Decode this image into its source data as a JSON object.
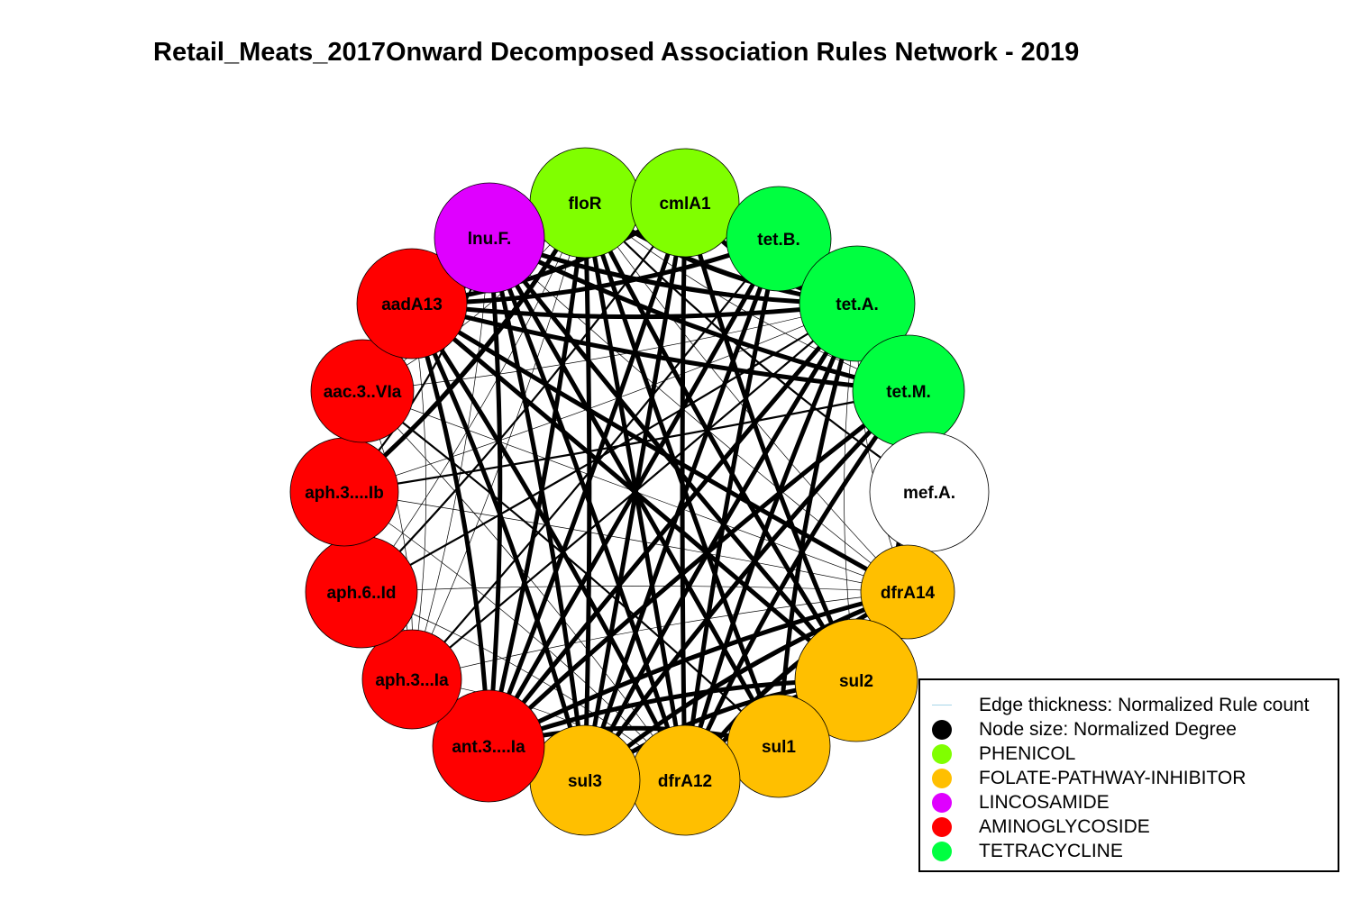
{
  "title": "Retail_Meats_2017Onward Decomposed Association Rules Network - 2019",
  "colors": {
    "PHENICOL": "#80ff00",
    "FOLATE-PATHWAY-INHIBITOR": "#ffbf00",
    "LINCOSAMIDE": "#df00ff",
    "AMINOGLYCOSIDE": "#ff0000",
    "TETRACYCLINE": "#00ff40",
    "MACROLIDE": "#ffffff",
    "edge": "#000000",
    "legend_edge": "#a6d6e8"
  },
  "nodes": [
    {
      "id": "floR",
      "label": "floR",
      "class": "PHENICOL"
    },
    {
      "id": "cmlA1",
      "label": "cmlA1",
      "class": "PHENICOL"
    },
    {
      "id": "tet.B.",
      "label": "tet.B.",
      "class": "TETRACYCLINE"
    },
    {
      "id": "tet.A.",
      "label": "tet.A.",
      "class": "TETRACYCLINE"
    },
    {
      "id": "tet.M.",
      "label": "tet.M.",
      "class": "TETRACYCLINE"
    },
    {
      "id": "mef.A.",
      "label": "mef.A.",
      "class": "MACROLIDE"
    },
    {
      "id": "dfrA14",
      "label": "dfrA14",
      "class": "FOLATE-PATHWAY-INHIBITOR"
    },
    {
      "id": "sul2",
      "label": "sul2",
      "class": "FOLATE-PATHWAY-INHIBITOR"
    },
    {
      "id": "sul1",
      "label": "sul1",
      "class": "FOLATE-PATHWAY-INHIBITOR"
    },
    {
      "id": "dfrA12",
      "label": "dfrA12",
      "class": "FOLATE-PATHWAY-INHIBITOR"
    },
    {
      "id": "sul3",
      "label": "sul3",
      "class": "FOLATE-PATHWAY-INHIBITOR"
    },
    {
      "id": "ant.3....Ia",
      "label": "ant.3....Ia",
      "class": "AMINOGLYCOSIDE"
    },
    {
      "id": "aph.3...Ia",
      "label": "aph.3...Ia",
      "class": "AMINOGLYCOSIDE"
    },
    {
      "id": "aph.6..Id",
      "label": "aph.6..Id",
      "class": "AMINOGLYCOSIDE"
    },
    {
      "id": "aph.3....Ib",
      "label": "aph.3....Ib",
      "class": "AMINOGLYCOSIDE"
    },
    {
      "id": "aac.3..VIa",
      "label": "aac.3..VIa",
      "class": "AMINOGLYCOSIDE"
    },
    {
      "id": "aadA13",
      "label": "aadA13",
      "class": "AMINOGLYCOSIDE"
    },
    {
      "id": "lnu.F.",
      "label": "lnu.F.",
      "class": "LINCOSAMIDE"
    }
  ],
  "legend": {
    "items": [
      {
        "label": "Edge thickness: Normalized Rule count",
        "kind": "line",
        "color": "#a6d6e8"
      },
      {
        "label": "Node size: Normalized Degree",
        "kind": "dot",
        "color": "#000000"
      },
      {
        "label": "PHENICOL",
        "kind": "dot",
        "color": "#80ff00"
      },
      {
        "label": "FOLATE-PATHWAY-INHIBITOR",
        "kind": "dot",
        "color": "#ffbf00"
      },
      {
        "label": "LINCOSAMIDE",
        "kind": "dot",
        "color": "#df00ff"
      },
      {
        "label": "AMINOGLYCOSIDE",
        "kind": "dot",
        "color": "#ff0000"
      },
      {
        "label": "TETRACYCLINE",
        "kind": "dot",
        "color": "#00ff40"
      }
    ]
  }
}
